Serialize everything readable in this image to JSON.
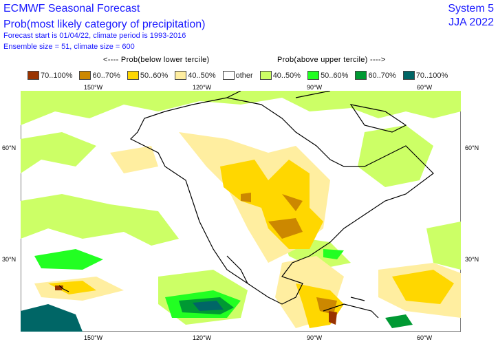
{
  "header": {
    "title": "ECMWF Seasonal Forecast",
    "subtitle": "Prob(most likely category of precipitation)",
    "line3": "Forecast start is 01/04/22, climate period is 1993-2016",
    "line4": "Ensemble size = 51, climate size = 600",
    "system": "System 5",
    "season": "JJA 2022"
  },
  "legend": {
    "below_label": "<---- Prob(below lower tercile)",
    "above_label": "Prob(above upper tercile) ---->",
    "items": [
      {
        "label": "70..100%",
        "color": "#993300"
      },
      {
        "label": "60..70%",
        "color": "#cc8800"
      },
      {
        "label": "50..60%",
        "color": "#ffd700"
      },
      {
        "label": "40..50%",
        "color": "#ffeea0"
      },
      {
        "label": "other",
        "color": "#ffffff"
      },
      {
        "label": "40..50%",
        "color": "#ccff66"
      },
      {
        "label": "50..60%",
        "color": "#22ff22"
      },
      {
        "label": "60..70%",
        "color": "#009933"
      },
      {
        "label": "70..100%",
        "color": "#006666"
      }
    ]
  },
  "axes": {
    "lon": [
      "150°W",
      "120°W",
      "90°W",
      "60°W"
    ],
    "lat": [
      "60°N",
      "30°N"
    ]
  }
}
